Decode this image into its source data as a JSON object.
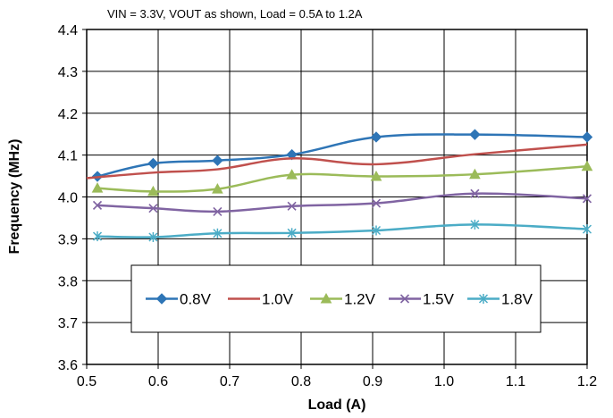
{
  "chart_data": {
    "type": "line",
    "subtitle": "VIN = 3.3V, VOUT as shown, Load = 0.5A to 1.2A",
    "xlabel": "Load (A)",
    "ylabel": "Frequency (MHz)",
    "xlim": [
      0.5,
      1.2
    ],
    "ylim": [
      3.6,
      4.4
    ],
    "xticks": [
      "0.5",
      "0.6",
      "0.7",
      "0.8",
      "0.9",
      "1.0",
      "1.1",
      "1.2"
    ],
    "yticks": [
      "3.6",
      "3.7",
      "3.8",
      "3.9",
      "4.0",
      "4.1",
      "4.2",
      "4.3",
      "4.4"
    ],
    "grid": true,
    "legend_position": "lower center, inside plot",
    "series": [
      {
        "name": "0.8V",
        "color": "#2e75b6",
        "marker": "diamond",
        "points": [
          [
            0.515,
            4.049
          ],
          [
            0.593,
            4.08
          ],
          [
            0.683,
            4.087
          ],
          [
            0.787,
            4.101
          ],
          [
            0.905,
            4.143
          ],
          [
            1.043,
            4.149
          ],
          [
            1.2,
            4.143
          ]
        ]
      },
      {
        "name": "1.0V",
        "color": "#c0504d",
        "marker": "none",
        "points": [
          [
            0.5,
            4.045
          ],
          [
            0.593,
            4.058
          ],
          [
            0.683,
            4.066
          ],
          [
            0.787,
            4.092
          ],
          [
            0.905,
            4.078
          ],
          [
            1.043,
            4.102
          ],
          [
            1.2,
            4.125
          ]
        ]
      },
      {
        "name": "1.2V",
        "color": "#9bbb59",
        "marker": "triangle",
        "points": [
          [
            0.515,
            4.021
          ],
          [
            0.593,
            4.013
          ],
          [
            0.683,
            4.019
          ],
          [
            0.787,
            4.053
          ],
          [
            0.905,
            4.049
          ],
          [
            1.043,
            4.054
          ],
          [
            1.2,
            4.073
          ]
        ]
      },
      {
        "name": "1.5V",
        "color": "#8064a2",
        "marker": "x",
        "points": [
          [
            0.515,
            3.98
          ],
          [
            0.593,
            3.973
          ],
          [
            0.683,
            3.965
          ],
          [
            0.787,
            3.978
          ],
          [
            0.905,
            3.985
          ],
          [
            1.043,
            4.008
          ],
          [
            1.2,
            3.996
          ]
        ]
      },
      {
        "name": "1.8V",
        "color": "#4bacc6",
        "marker": "star",
        "points": [
          [
            0.515,
            3.906
          ],
          [
            0.593,
            3.904
          ],
          [
            0.683,
            3.913
          ],
          [
            0.787,
            3.914
          ],
          [
            0.905,
            3.92
          ],
          [
            1.043,
            3.934
          ],
          [
            1.2,
            3.923
          ]
        ]
      }
    ]
  }
}
